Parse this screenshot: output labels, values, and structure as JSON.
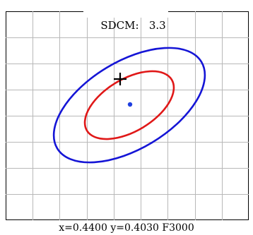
{
  "window": {
    "metric_label": "SDCM:",
    "metric_value": "3.3"
  },
  "plot": {
    "grid_color": "#b8b8b8",
    "frame_color": "#000000",
    "outer_ellipse_color": "#1515d6",
    "inner_ellipse_color": "#e01818",
    "center_point_color": "#1f3fe0",
    "marker_color": "#000000",
    "marker_icon": "crosshair-plus-icon"
  },
  "status": {
    "coordinates_text": "x=0.4400 y=0.4030 F3000"
  }
}
